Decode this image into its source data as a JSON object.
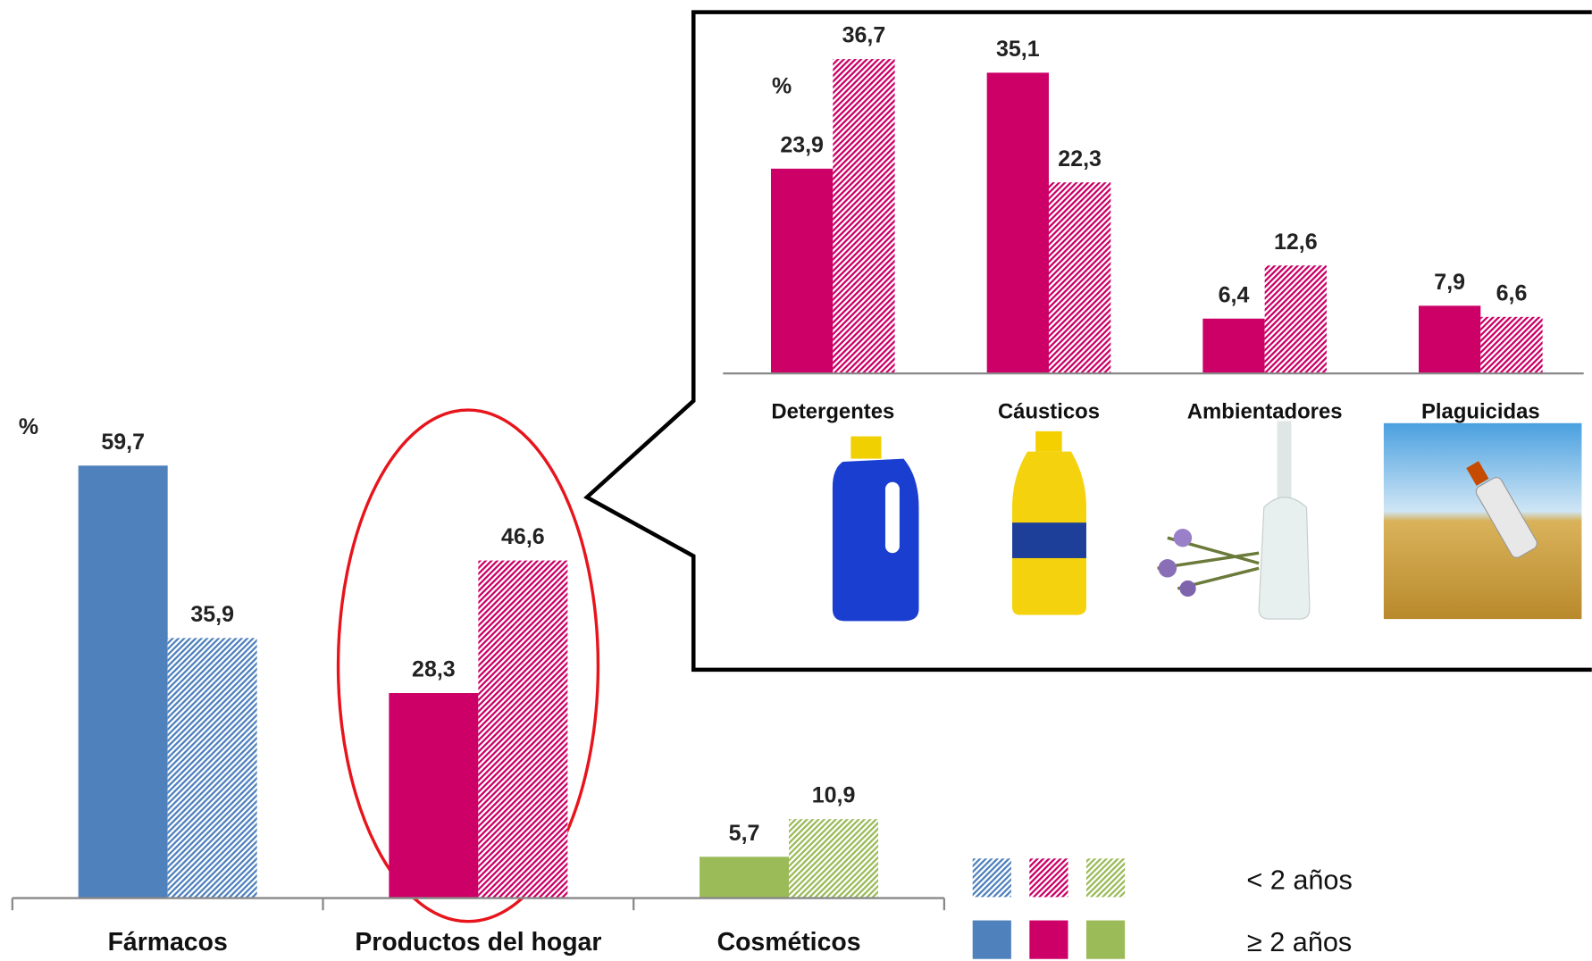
{
  "chart_data": [
    {
      "type": "bar",
      "unit_label": "%",
      "categories": [
        "Fármacos",
        "Productos del hogar",
        "Cosméticos"
      ],
      "colors": [
        "#4f81bd",
        "#cc0066",
        "#9bbb59"
      ],
      "series": [
        {
          "name": "≥ 2 años",
          "pattern": "solid",
          "values": [
            59.7,
            28.3,
            5.7
          ],
          "value_labels": [
            "59,7",
            "28,3",
            "5,7"
          ]
        },
        {
          "name": "< 2 años",
          "pattern": "hatch",
          "values": [
            35.9,
            46.6,
            10.9
          ],
          "value_labels": [
            "35,9",
            "46,6",
            "10,9"
          ]
        }
      ],
      "ylim": [
        0,
        62
      ],
      "legend": "bottom-right"
    },
    {
      "type": "bar",
      "unit_label": "%",
      "categories": [
        "Detergentes",
        "Cáusticos",
        "Ambientadores",
        "Plaguicidas"
      ],
      "color": "#cc0066",
      "series": [
        {
          "pattern": "solid",
          "values": [
            23.9,
            35.1,
            6.4,
            7.9
          ],
          "value_labels": [
            "23,9",
            "35,1",
            "6,4",
            "7,9"
          ]
        },
        {
          "pattern": "hatch",
          "values": [
            36.7,
            22.3,
            12.6,
            6.6
          ],
          "value_labels": [
            "36,7",
            "22,3",
            "12,6",
            "6,6"
          ]
        }
      ],
      "ylim": [
        0,
        37
      ]
    }
  ]
}
